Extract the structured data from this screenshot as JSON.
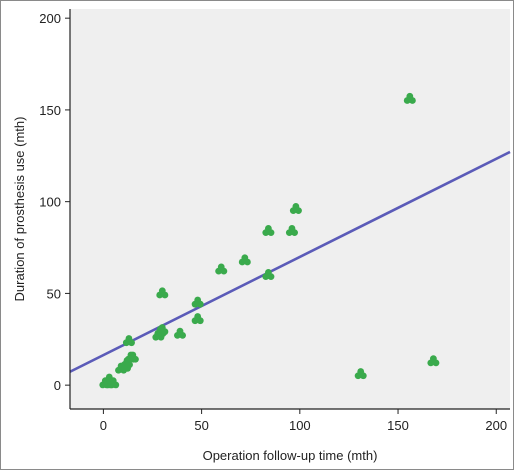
{
  "chart_data": {
    "type": "scatter",
    "title": "",
    "xlabel": "Operation follow-up time (mth)",
    "ylabel": "Duration of prosthesis use (mth)",
    "xlim": [
      -17,
      207
    ],
    "ylim": [
      -13,
      205
    ],
    "x_ticks": [
      0,
      50,
      100,
      150,
      200
    ],
    "x_tick_labels": [
      "0",
      "50",
      "100",
      "150",
      "200"
    ],
    "y_ticks": [
      0,
      50,
      100,
      150,
      200
    ],
    "y_tick_labels": [
      "0",
      "50",
      "100",
      "150",
      "200"
    ],
    "grid": false,
    "legend": "none",
    "colors": {
      "plot_background": "#efefef",
      "marker": "#3aaa4c",
      "fit_line": "#5b5bb8",
      "axis": "#222222"
    },
    "points": [
      {
        "x": 1,
        "y": 1
      },
      {
        "x": 3,
        "y": 3
      },
      {
        "x": 3,
        "y": 1
      },
      {
        "x": 5,
        "y": 1
      },
      {
        "x": 9,
        "y": 9
      },
      {
        "x": 11,
        "y": 10
      },
      {
        "x": 12,
        "y": 12
      },
      {
        "x": 13,
        "y": 24
      },
      {
        "x": 14,
        "y": 15
      },
      {
        "x": 15,
        "y": 15
      },
      {
        "x": 28,
        "y": 27
      },
      {
        "x": 29,
        "y": 29
      },
      {
        "x": 30,
        "y": 30
      },
      {
        "x": 30,
        "y": 50
      },
      {
        "x": 39,
        "y": 28
      },
      {
        "x": 48,
        "y": 45
      },
      {
        "x": 48,
        "y": 36
      },
      {
        "x": 60,
        "y": 63
      },
      {
        "x": 72,
        "y": 68
      },
      {
        "x": 84,
        "y": 84
      },
      {
        "x": 84,
        "y": 60
      },
      {
        "x": 96,
        "y": 84
      },
      {
        "x": 98,
        "y": 96
      },
      {
        "x": 131,
        "y": 6
      },
      {
        "x": 156,
        "y": 156
      },
      {
        "x": 168,
        "y": 13
      }
    ],
    "fit_line": {
      "x": [
        -17,
        207
      ],
      "y": [
        7.3,
        127.1
      ]
    }
  }
}
